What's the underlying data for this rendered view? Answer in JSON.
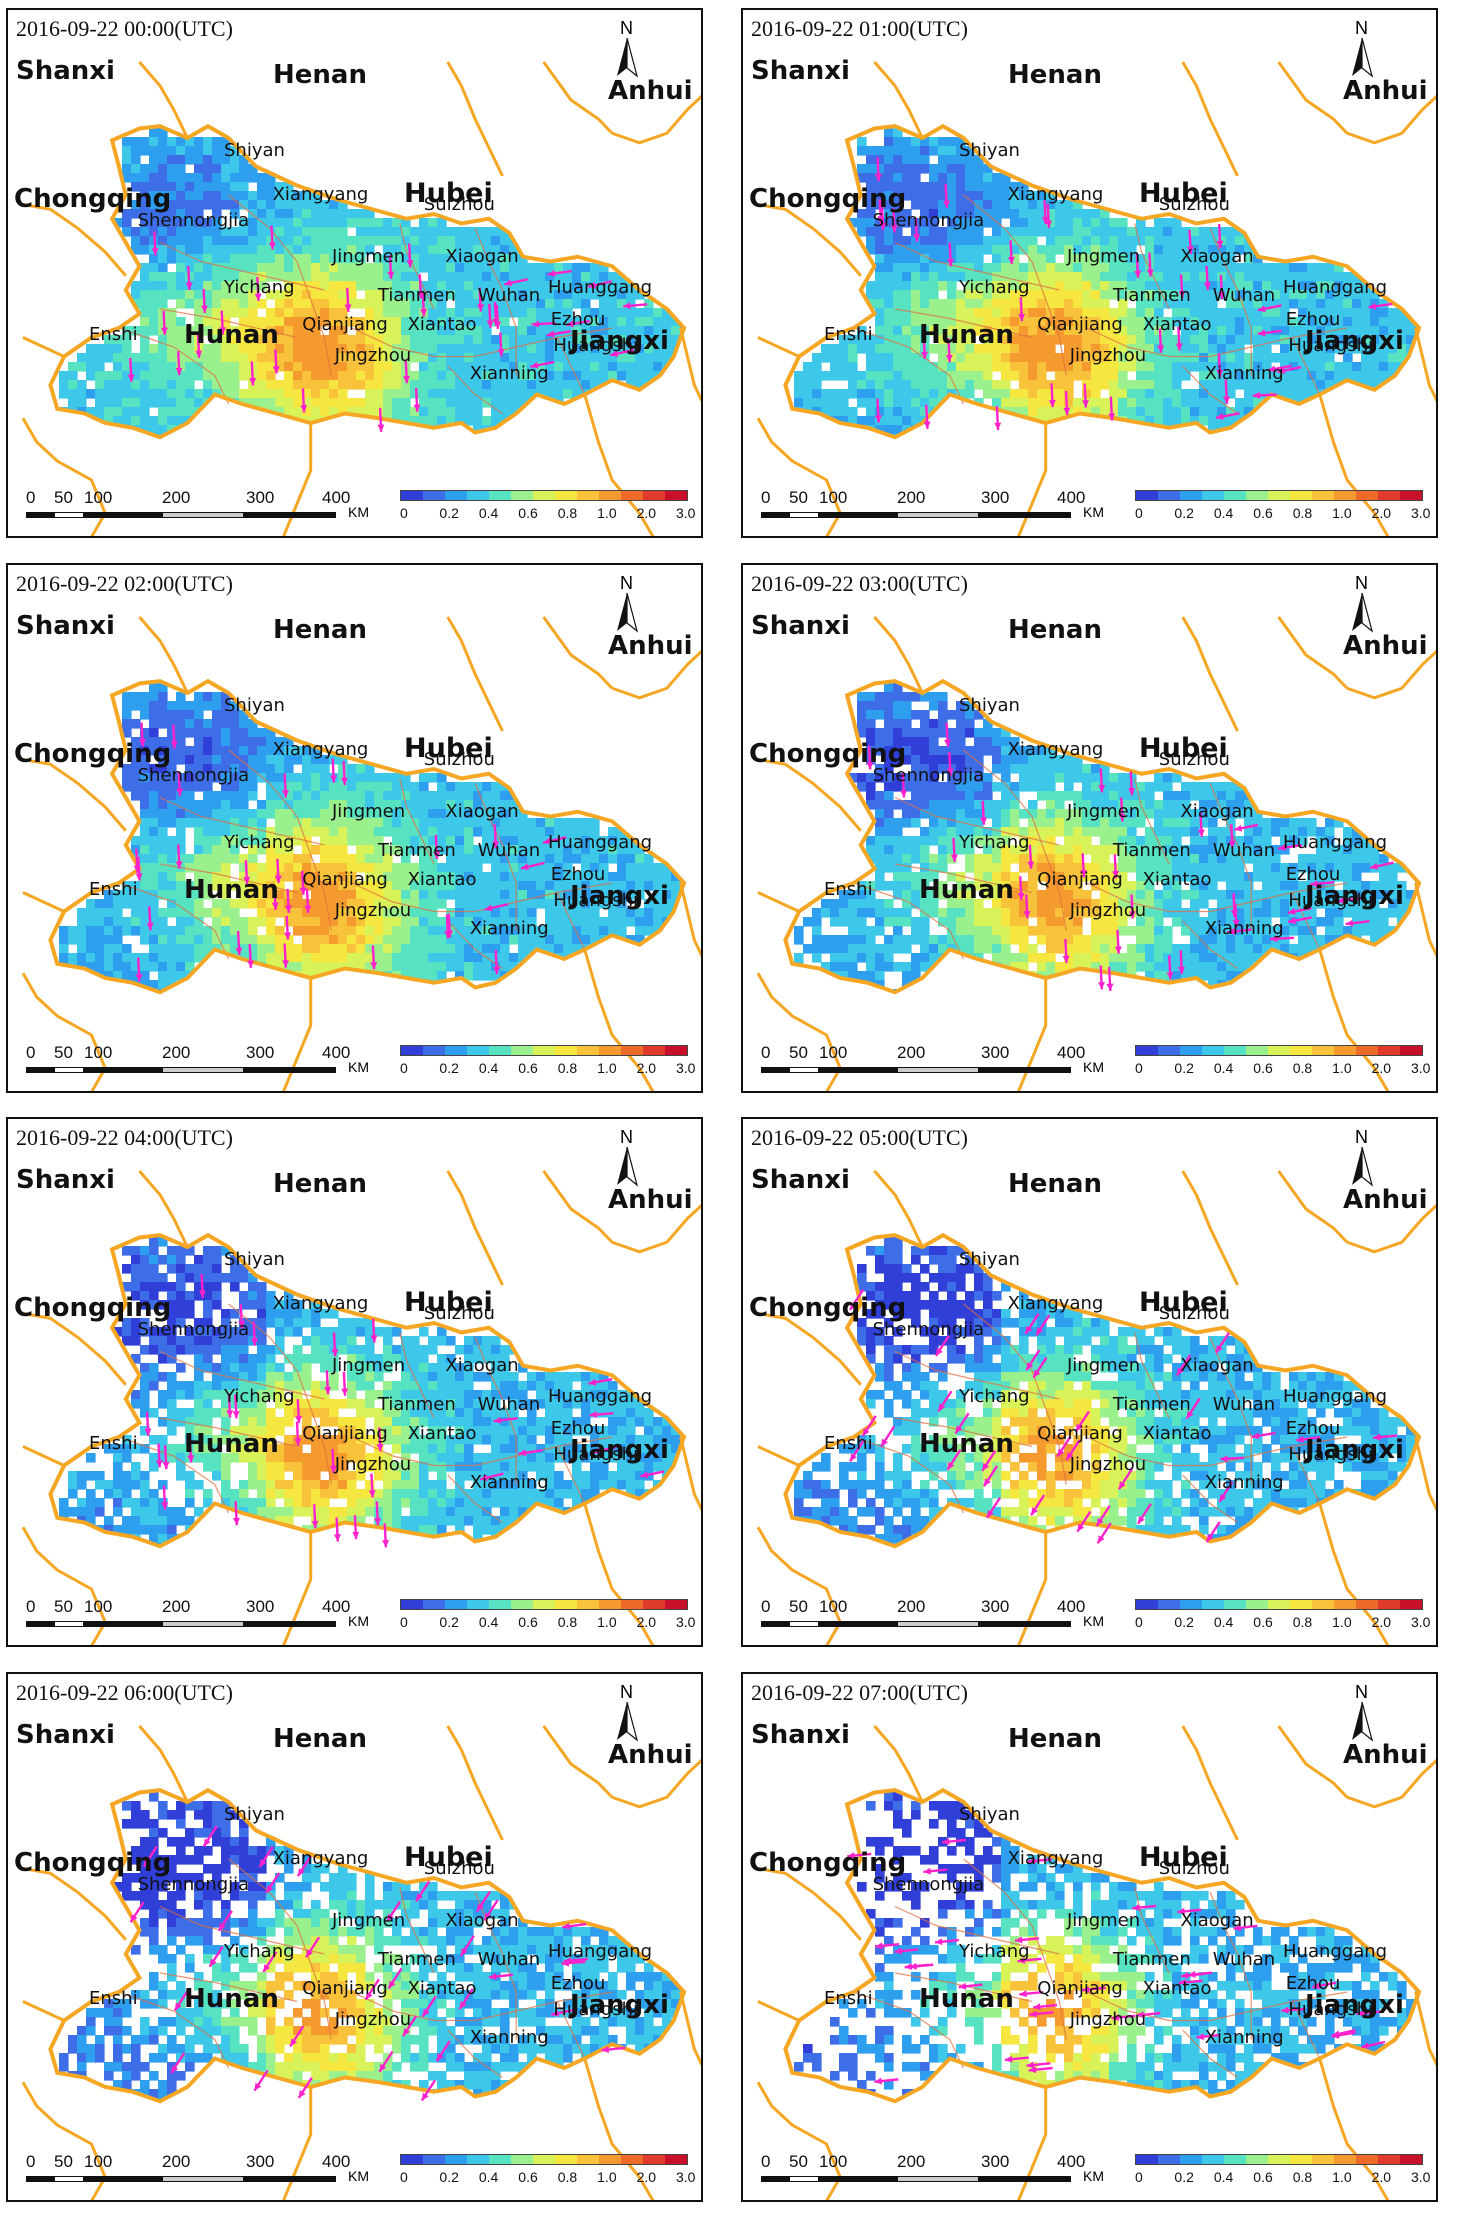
{
  "panels": [
    {
      "timestamp": "2016-09-22 00:00(UTC)",
      "gap_level": 0.05,
      "wind": "south"
    },
    {
      "timestamp": "2016-09-22 01:00(UTC)",
      "gap_level": 0.05,
      "wind": "south"
    },
    {
      "timestamp": "2016-09-22 02:00(UTC)",
      "gap_level": 0.08,
      "wind": "south"
    },
    {
      "timestamp": "2016-09-22 03:00(UTC)",
      "gap_level": 0.15,
      "wind": "south"
    },
    {
      "timestamp": "2016-09-22 04:00(UTC)",
      "gap_level": 0.22,
      "wind": "south"
    },
    {
      "timestamp": "2016-09-22 05:00(UTC)",
      "gap_level": 0.28,
      "wind": "southwest"
    },
    {
      "timestamp": "2016-09-22 06:00(UTC)",
      "gap_level": 0.35,
      "wind": "southwest"
    },
    {
      "timestamp": "2016-09-22 07:00(UTC)",
      "gap_level": 0.55,
      "wind": "west"
    }
  ],
  "labels": {
    "regions": [
      "Shanxi",
      "Henan",
      "Anhui",
      "Chongqing",
      "Hunan",
      "Jiangxi"
    ],
    "province": "Hubei",
    "cities": [
      "Shiyan",
      "Xiangyang",
      "Suizhou",
      "Shennongjia",
      "Jingmen",
      "Xiaogan",
      "Yichang",
      "Tianmen",
      "Wuhan",
      "Huanggang",
      "Enshi",
      "Qianjiang",
      "Xiantao",
      "Ezhou",
      "Huangshi",
      "Jingzhou",
      "Xianning"
    ],
    "north": "N"
  },
  "scale_bar": {
    "ticks": [
      "0",
      "50",
      "100",
      "200",
      "300",
      "400"
    ],
    "unit": "KM"
  },
  "legend": {
    "ticks": [
      "0",
      "0.2",
      "0.4",
      "0.6",
      "0.8",
      "1.0",
      "2.0",
      "3.0"
    ],
    "colors": [
      "#2f3fd8",
      "#3d6ee8",
      "#2e9fef",
      "#3dc7e8",
      "#57e2c2",
      "#9af08c",
      "#d8f25a",
      "#f6e640",
      "#f8c33a",
      "#f59a2e",
      "#ee6a2a",
      "#e03a2a",
      "#c8102a"
    ]
  },
  "colors": {
    "border": "#f5a623",
    "arrow": "#ff22cc",
    "internal_border": "#e07040"
  }
}
